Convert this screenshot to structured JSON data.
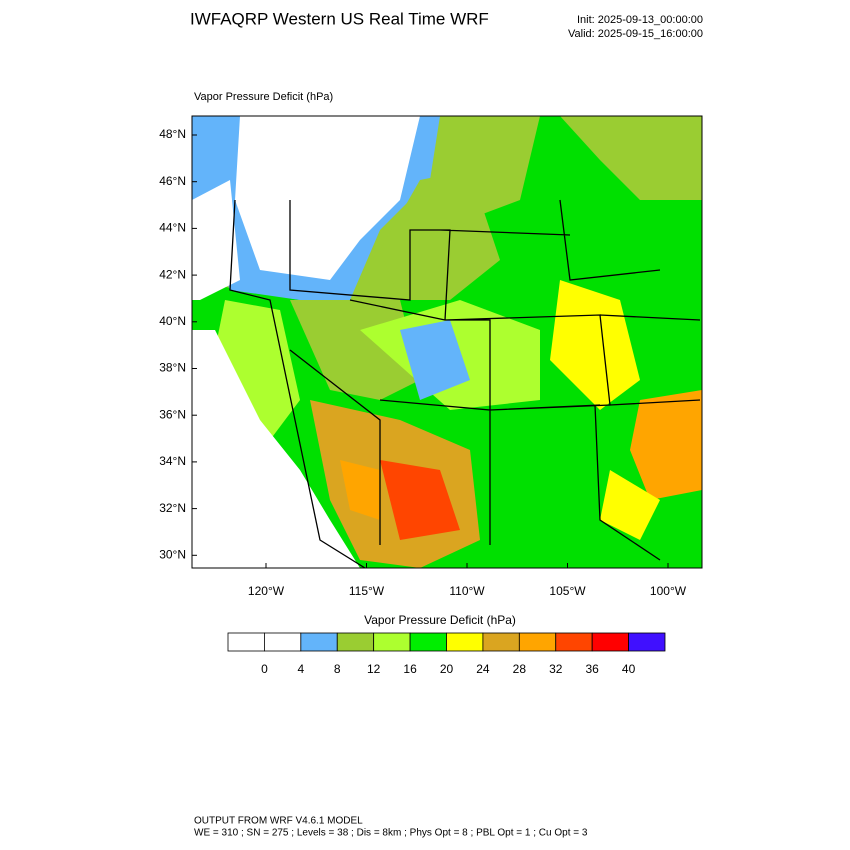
{
  "header": {
    "title": "IWFAQRP Western US Real Time WRF",
    "init": "Init: 2025-09-13_00:00:00",
    "valid": "Valid: 2025-09-15_16:00:00"
  },
  "map": {
    "label": "Vapor Pressure Deficit   (hPa)",
    "lat_labels": [
      "48°N",
      "46°N",
      "44°N",
      "42°N",
      "40°N",
      "38°N",
      "36°N",
      "34°N",
      "32°N",
      "30°N"
    ],
    "lon_labels": [
      "120°W",
      "115°W",
      "110°W",
      "105°W",
      "100°W"
    ]
  },
  "colorbar": {
    "title": "Vapor Pressure Deficit  (hPa)",
    "colors": [
      "#ffffff",
      "#ffffff",
      "#63b4fa",
      "#9acd32",
      "#adff2f",
      "#00ee00",
      "#ffff00",
      "#daa520",
      "#ffa500",
      "#ff4500",
      "#ff0000",
      "#4010ff"
    ],
    "labels": [
      0,
      4,
      8,
      12,
      16,
      20,
      24,
      28,
      32,
      36,
      40
    ]
  },
  "footer": {
    "line1": "OUTPUT FROM WRF V4.6.1 MODEL",
    "line2": "WE = 310 ; SN = 275 ; Levels = 38 ; Dis = 8km ; Phys Opt = 8 ; PBL Opt = 1 ; Cu Opt = 3"
  }
}
